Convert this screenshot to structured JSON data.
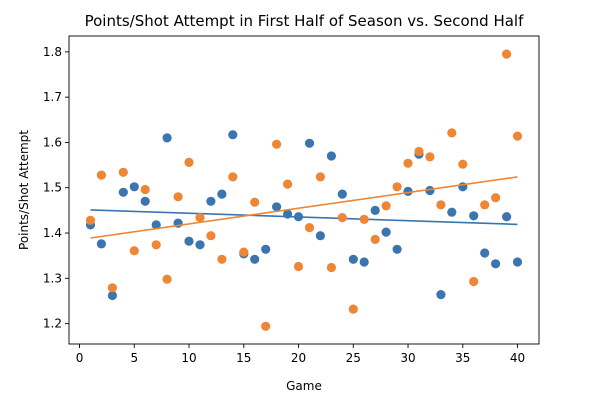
{
  "chart_data": {
    "type": "scatter",
    "title": "Points/Shot Attempt in First Half of Season vs. Second Half",
    "xlabel": "Game",
    "ylabel": "Points/Shot Attempt",
    "xlim": [
      -0.96,
      41.96
    ],
    "ylim": [
      1.155,
      1.835
    ],
    "xticks": [
      0,
      5,
      10,
      15,
      20,
      25,
      30,
      35,
      40
    ],
    "yticks": [
      1.2,
      1.3,
      1.4,
      1.5,
      1.6,
      1.7,
      1.8
    ],
    "ytick_labels": [
      "1.2",
      "1.3",
      "1.4",
      "1.5",
      "1.6",
      "1.7",
      "1.8"
    ],
    "grid": false,
    "series": [
      {
        "color": "#3b75af",
        "x": [
          1,
          2,
          3,
          4,
          5,
          6,
          7,
          8,
          9,
          10,
          11,
          12,
          13,
          14,
          15,
          16,
          17,
          18,
          19,
          20,
          21,
          22,
          23,
          24,
          25,
          26,
          27,
          28,
          29,
          30,
          31,
          32,
          33,
          34,
          35,
          36,
          37,
          38,
          39,
          40
        ],
        "y": [
          1.418,
          1.376,
          1.262,
          1.49,
          1.502,
          1.47,
          1.418,
          1.61,
          1.422,
          1.382,
          1.374,
          1.47,
          1.486,
          1.617,
          1.354,
          1.342,
          1.364,
          1.458,
          1.442,
          1.436,
          1.598,
          1.394,
          1.57,
          1.486,
          1.342,
          1.336,
          1.45,
          1.402,
          1.364,
          1.492,
          1.574,
          1.494,
          1.264,
          1.446,
          1.502,
          1.438,
          1.356,
          1.332,
          1.436,
          1.336
        ],
        "trend": [
          1.451,
          1.419
        ]
      },
      {
        "color": "#ef8636",
        "x": [
          1,
          2,
          3,
          4,
          5,
          6,
          7,
          8,
          9,
          10,
          11,
          12,
          13,
          14,
          15,
          16,
          17,
          18,
          19,
          20,
          21,
          22,
          23,
          24,
          25,
          26,
          27,
          28,
          29,
          30,
          31,
          32,
          33,
          34,
          35,
          36,
          37,
          38,
          39,
          40
        ],
        "y": [
          1.428,
          1.528,
          1.279,
          1.534,
          1.361,
          1.496,
          1.374,
          1.298,
          1.48,
          1.556,
          1.434,
          1.394,
          1.342,
          1.524,
          1.358,
          1.468,
          1.194,
          1.596,
          1.508,
          1.326,
          1.412,
          1.524,
          1.324,
          1.434,
          1.232,
          1.43,
          1.386,
          1.46,
          1.502,
          1.554,
          1.58,
          1.568,
          1.462,
          1.621,
          1.552,
          1.293,
          1.462,
          1.478,
          1.795,
          1.614
        ],
        "trend": [
          1.389,
          1.524
        ]
      }
    ]
  }
}
